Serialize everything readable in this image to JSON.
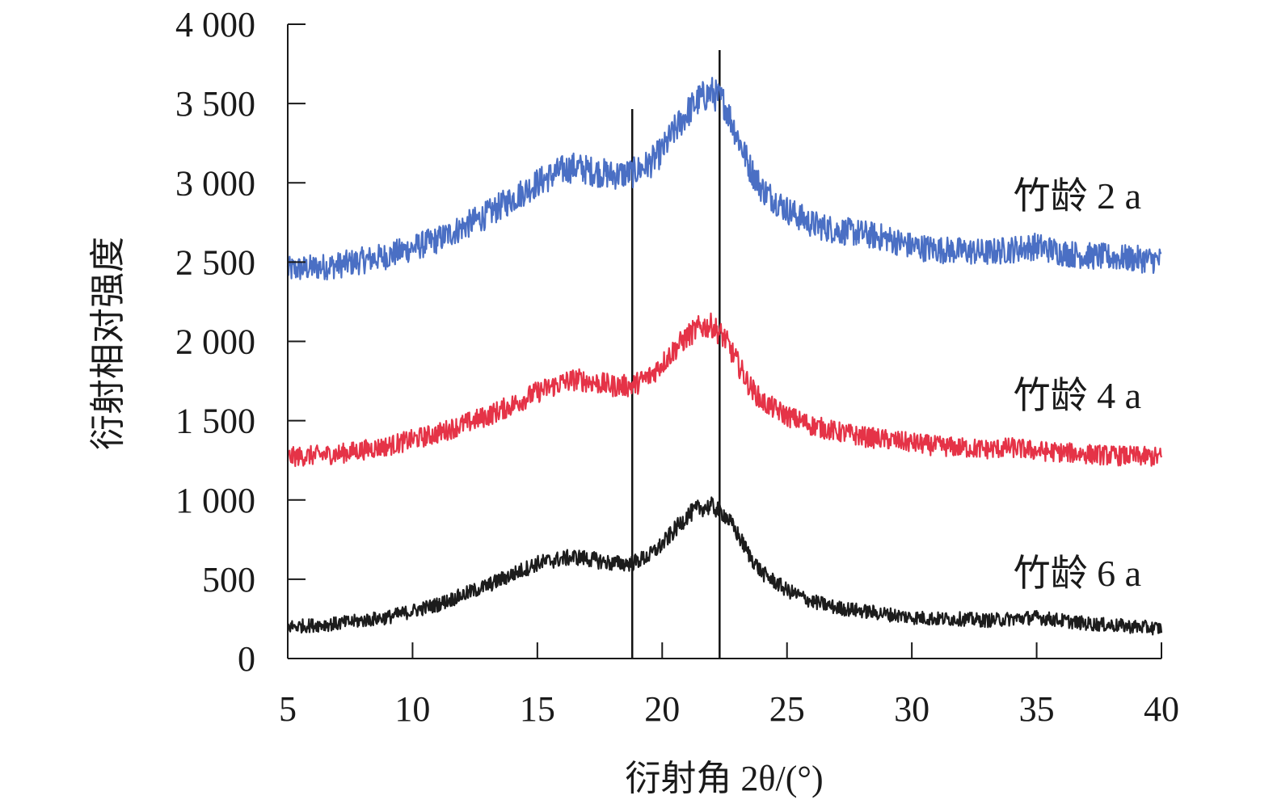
{
  "chart_data": {
    "type": "line",
    "xlabel": "衍射角 2θ/(°)",
    "ylabel": "衍射相对强度",
    "xlim": [
      5,
      40
    ],
    "ylim": [
      0,
      4000
    ],
    "x_ticks": [
      5,
      10,
      15,
      20,
      25,
      30,
      35,
      40
    ],
    "x_tick_labels": [
      "5",
      "10",
      "15",
      "20",
      "25",
      "30",
      "35",
      "40"
    ],
    "y_ticks": [
      0,
      500,
      1000,
      1500,
      2000,
      2500,
      3000,
      3500,
      4000
    ],
    "y_tick_labels": [
      "0",
      "500",
      "1 000",
      "1 500",
      "2 000",
      "2 500",
      "3 000",
      "3 500",
      "4 000"
    ],
    "grid": false,
    "reference_lines_x": [
      18.8,
      22.3
    ],
    "series": [
      {
        "name": "竹龄 2 a",
        "color": "#4a6fc4",
        "x": [
          5,
          7,
          9,
          11,
          13,
          14,
          15,
          16,
          16.5,
          17,
          18,
          18.8,
          19.5,
          20,
          20.5,
          21,
          21.5,
          22,
          22.5,
          23,
          23.5,
          24,
          25,
          26,
          27,
          28,
          29,
          30,
          31,
          32,
          33,
          34,
          35,
          36,
          37,
          38,
          39,
          40
        ],
        "values": [
          2450,
          2480,
          2540,
          2640,
          2800,
          2900,
          3000,
          3080,
          3100,
          3080,
          3050,
          3060,
          3120,
          3200,
          3330,
          3440,
          3530,
          3570,
          3500,
          3300,
          3100,
          2960,
          2830,
          2740,
          2700,
          2680,
          2650,
          2600,
          2580,
          2570,
          2560,
          2580,
          2600,
          2560,
          2540,
          2530,
          2520,
          2510
        ]
      },
      {
        "name": "竹龄 4 a",
        "color": "#e53347",
        "x": [
          5,
          7,
          9,
          11,
          13,
          14,
          15,
          16,
          16.5,
          17,
          18,
          18.8,
          19.5,
          20,
          20.5,
          21,
          21.5,
          22,
          22.5,
          23,
          23.5,
          24,
          25,
          26,
          27,
          28,
          29,
          30,
          31,
          32,
          33,
          34,
          35,
          36,
          37,
          38,
          39,
          40
        ],
        "values": [
          1270,
          1290,
          1340,
          1420,
          1530,
          1600,
          1680,
          1740,
          1760,
          1750,
          1720,
          1720,
          1780,
          1860,
          1950,
          2030,
          2090,
          2100,
          2020,
          1870,
          1720,
          1620,
          1530,
          1470,
          1430,
          1400,
          1380,
          1360,
          1340,
          1330,
          1320,
          1330,
          1310,
          1300,
          1290,
          1280,
          1275,
          1270
        ]
      },
      {
        "name": "竹龄 6 a",
        "color": "#1c1c1c",
        "x": [
          5,
          7,
          9,
          11,
          13,
          14,
          15,
          16,
          16.5,
          17,
          18,
          18.8,
          19.5,
          20,
          20.5,
          21,
          21.5,
          22,
          22.5,
          23,
          23.5,
          24,
          25,
          26,
          27,
          28,
          29,
          30,
          31,
          32,
          33,
          34,
          35,
          36,
          37,
          38,
          39,
          40
        ],
        "values": [
          200,
          220,
          260,
          340,
          460,
          530,
          600,
          630,
          640,
          630,
          600,
          600,
          650,
          720,
          810,
          900,
          950,
          960,
          910,
          790,
          650,
          540,
          430,
          360,
          320,
          300,
          280,
          260,
          250,
          250,
          240,
          250,
          260,
          240,
          220,
          210,
          200,
          190
        ]
      }
    ]
  }
}
